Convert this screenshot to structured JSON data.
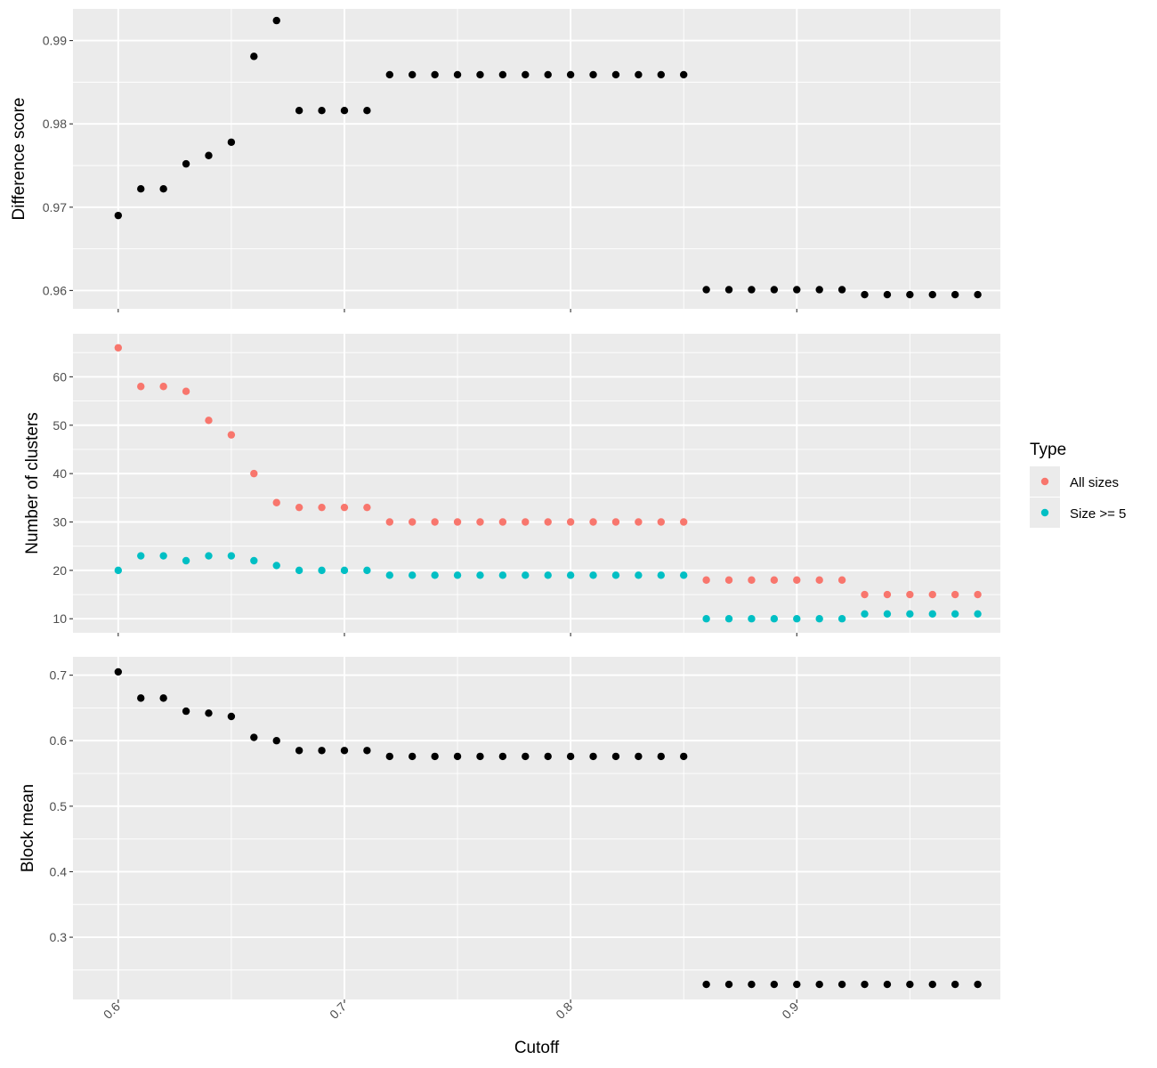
{
  "colors": {
    "panel_background": "#EBEBEB",
    "grid": "#FFFFFF",
    "default_point": "#000000",
    "all_sizes": "#F8766D",
    "size_ge_5": "#00BFC4"
  },
  "chart_data": [
    {
      "type": "scatter",
      "panel": "top",
      "xlabel": "",
      "ylabel": "Difference score",
      "xlim": [
        0.58,
        0.99
      ],
      "ylim": [
        0.9578,
        0.9938
      ],
      "x_ticks": [
        0.6,
        0.7,
        0.8,
        0.9
      ],
      "y_ticks": [
        0.96,
        0.97,
        0.98,
        0.99
      ],
      "y_tick_labels": [
        "0.96",
        "0.97",
        "0.98",
        "0.99"
      ],
      "series": [
        {
          "color": "#000000",
          "x": [
            0.6,
            0.61,
            0.62,
            0.63,
            0.64,
            0.65,
            0.66,
            0.67,
            0.68,
            0.69,
            0.7,
            0.71,
            0.72,
            0.73,
            0.74,
            0.75,
            0.76,
            0.77,
            0.78,
            0.79,
            0.8,
            0.81,
            0.82,
            0.83,
            0.84,
            0.85,
            0.86,
            0.87,
            0.88,
            0.89,
            0.9,
            0.91,
            0.92,
            0.93,
            0.94,
            0.95,
            0.96,
            0.97,
            0.98
          ],
          "y": [
            0.969,
            0.9722,
            0.9722,
            0.9752,
            0.9762,
            0.9778,
            0.9881,
            0.9924,
            0.9816,
            0.9816,
            0.9816,
            0.9816,
            0.9859,
            0.9859,
            0.9859,
            0.9859,
            0.9859,
            0.9859,
            0.9859,
            0.9859,
            0.9859,
            0.9859,
            0.9859,
            0.9859,
            0.9859,
            0.9859,
            0.9601,
            0.9601,
            0.9601,
            0.9601,
            0.9601,
            0.9601,
            0.9601,
            0.9595,
            0.9595,
            0.9595,
            0.9595,
            0.9595,
            0.9595
          ]
        }
      ]
    },
    {
      "type": "scatter",
      "panel": "middle",
      "xlabel": "",
      "ylabel": "Number of clusters",
      "xlim": [
        0.58,
        0.99
      ],
      "ylim": [
        7.1,
        68.9
      ],
      "x_ticks": [
        0.6,
        0.7,
        0.8,
        0.9
      ],
      "y_ticks": [
        10,
        20,
        30,
        40,
        50,
        60
      ],
      "y_tick_labels": [
        "10",
        "20",
        "30",
        "40",
        "50",
        "60"
      ],
      "legend": {
        "title": "Type",
        "position": "right"
      },
      "series": [
        {
          "name": "All sizes",
          "color": "#F8766D",
          "x": [
            0.6,
            0.61,
            0.62,
            0.63,
            0.64,
            0.65,
            0.66,
            0.67,
            0.68,
            0.69,
            0.7,
            0.71,
            0.72,
            0.73,
            0.74,
            0.75,
            0.76,
            0.77,
            0.78,
            0.79,
            0.8,
            0.81,
            0.82,
            0.83,
            0.84,
            0.85,
            0.86,
            0.87,
            0.88,
            0.89,
            0.9,
            0.91,
            0.92,
            0.93,
            0.94,
            0.95,
            0.96,
            0.97,
            0.98
          ],
          "y": [
            66,
            58,
            58,
            57,
            51,
            48,
            40,
            34,
            33,
            33,
            33,
            33,
            30,
            30,
            30,
            30,
            30,
            30,
            30,
            30,
            30,
            30,
            30,
            30,
            30,
            30,
            18,
            18,
            18,
            18,
            18,
            18,
            18,
            15,
            15,
            15,
            15,
            15,
            15
          ]
        },
        {
          "name": "Size >= 5",
          "color": "#00BFC4",
          "x": [
            0.6,
            0.61,
            0.62,
            0.63,
            0.64,
            0.65,
            0.66,
            0.67,
            0.68,
            0.69,
            0.7,
            0.71,
            0.72,
            0.73,
            0.74,
            0.75,
            0.76,
            0.77,
            0.78,
            0.79,
            0.8,
            0.81,
            0.82,
            0.83,
            0.84,
            0.85,
            0.86,
            0.87,
            0.88,
            0.89,
            0.9,
            0.91,
            0.92,
            0.93,
            0.94,
            0.95,
            0.96,
            0.97,
            0.98
          ],
          "y": [
            20,
            23,
            23,
            22,
            23,
            23,
            22,
            21,
            20,
            20,
            20,
            20,
            19,
            19,
            19,
            19,
            19,
            19,
            19,
            19,
            19,
            19,
            19,
            19,
            19,
            19,
            10,
            10,
            10,
            10,
            10,
            10,
            10,
            11,
            11,
            11,
            11,
            11,
            11
          ]
        }
      ]
    },
    {
      "type": "scatter",
      "panel": "bottom",
      "xlabel": "Cutoff",
      "ylabel": "Block mean",
      "xlim": [
        0.58,
        0.99
      ],
      "ylim": [
        0.205,
        0.728
      ],
      "x_ticks": [
        0.6,
        0.7,
        0.8,
        0.9
      ],
      "x_tick_labels": [
        "0.6",
        "0.7",
        "0.8",
        "0.9"
      ],
      "y_ticks": [
        0.3,
        0.4,
        0.5,
        0.6,
        0.7
      ],
      "y_tick_labels": [
        "0.3",
        "0.4",
        "0.5",
        "0.6",
        "0.7"
      ],
      "series": [
        {
          "color": "#000000",
          "x": [
            0.6,
            0.61,
            0.62,
            0.63,
            0.64,
            0.65,
            0.66,
            0.67,
            0.68,
            0.69,
            0.7,
            0.71,
            0.72,
            0.73,
            0.74,
            0.75,
            0.76,
            0.77,
            0.78,
            0.79,
            0.8,
            0.81,
            0.82,
            0.83,
            0.84,
            0.85,
            0.86,
            0.87,
            0.88,
            0.89,
            0.9,
            0.91,
            0.92,
            0.93,
            0.94,
            0.95,
            0.96,
            0.97,
            0.98
          ],
          "y": [
            0.705,
            0.665,
            0.665,
            0.645,
            0.642,
            0.637,
            0.605,
            0.6,
            0.585,
            0.585,
            0.585,
            0.585,
            0.576,
            0.576,
            0.576,
            0.576,
            0.576,
            0.576,
            0.576,
            0.576,
            0.576,
            0.576,
            0.576,
            0.576,
            0.576,
            0.576,
            0.228,
            0.228,
            0.228,
            0.228,
            0.228,
            0.228,
            0.228,
            0.228,
            0.228,
            0.228,
            0.228,
            0.228,
            0.228
          ]
        }
      ]
    }
  ]
}
